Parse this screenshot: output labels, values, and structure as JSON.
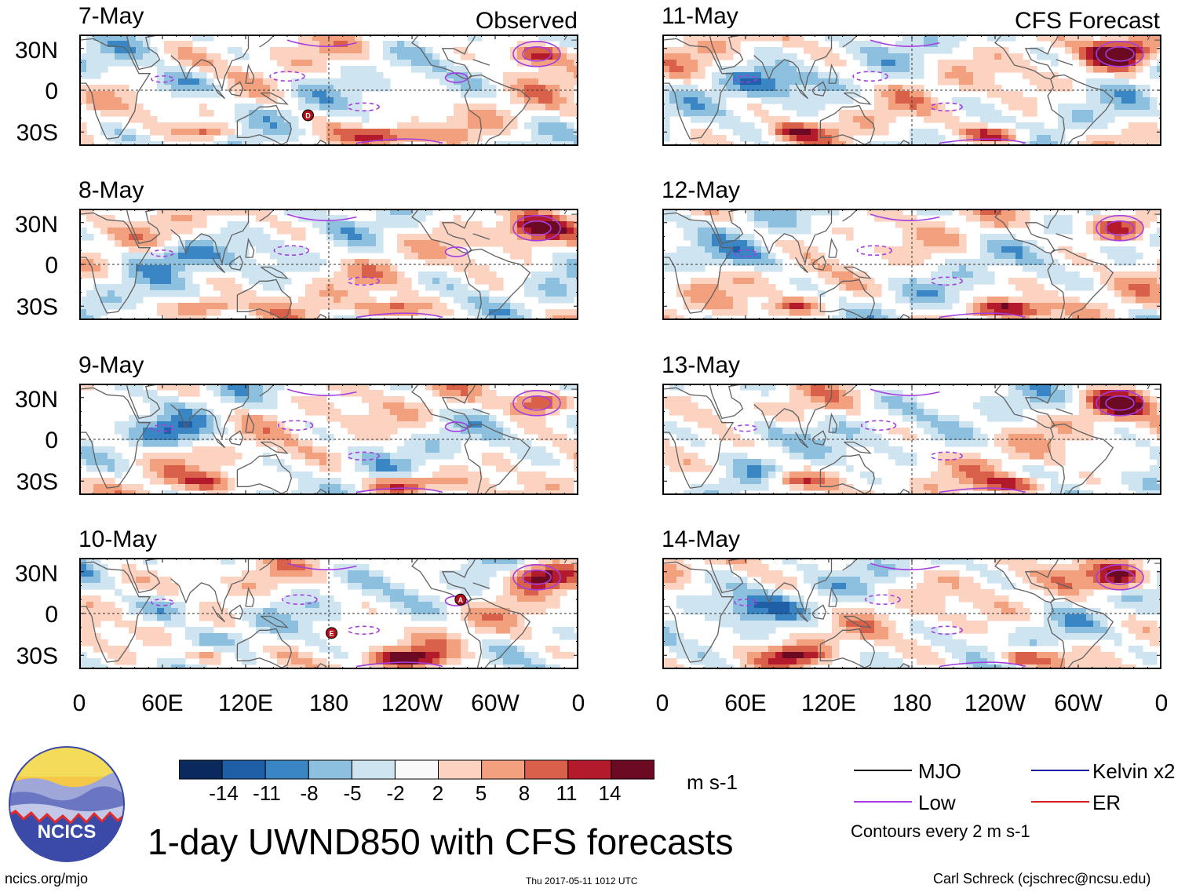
{
  "panels": {
    "observed_title": "Observed",
    "forecast_title": "CFS Forecast",
    "left": [
      {
        "date": "7-May",
        "markers": [
          {
            "letter": "D",
            "lon": 165,
            "lat": -18
          }
        ]
      },
      {
        "date": "8-May",
        "markers": []
      },
      {
        "date": "9-May",
        "markers": []
      },
      {
        "date": "10-May",
        "markers": [
          {
            "letter": "A",
            "lon": 275,
            "lat": 10
          },
          {
            "letter": "E",
            "lon": 182,
            "lat": -14
          }
        ]
      }
    ],
    "right": [
      {
        "date": "11-May",
        "markers": []
      },
      {
        "date": "12-May",
        "markers": []
      },
      {
        "date": "13-May",
        "markers": []
      },
      {
        "date": "14-May",
        "markers": []
      }
    ]
  },
  "axes": {
    "lat_labels": [
      "30N",
      "0",
      "30S"
    ],
    "lon_labels": [
      "0",
      "60E",
      "120E",
      "180",
      "120W",
      "60W",
      "0"
    ]
  },
  "colorbar": {
    "ticks": [
      "-14",
      "-11",
      "-8",
      "-5",
      "-2",
      "2",
      "5",
      "8",
      "11",
      "14"
    ],
    "colors": [
      "#0a2a5e",
      "#1e5fa8",
      "#3a86c4",
      "#8cc0de",
      "#cfe4f1",
      "#f9f9f9",
      "#fbd3c0",
      "#f2a07e",
      "#d9614a",
      "#b31b2c",
      "#6b0a22"
    ],
    "units": "m s-1"
  },
  "legend": {
    "items": [
      {
        "label": "MJO",
        "color": "#000000"
      },
      {
        "label": "Kelvin x2",
        "color": "#1c1ca8"
      },
      {
        "label": "Low",
        "color": "#a43ee0"
      },
      {
        "label": "ER",
        "color": "#d42020"
      }
    ],
    "note": "Contours every 2 m s-1"
  },
  "logo": {
    "text": "NCICS"
  },
  "title": "1-day UWND850 with CFS forecasts",
  "footer": {
    "left": "ncics.org/mjo",
    "middle": "Thu 2017-05-11 1012 UTC",
    "right": "Carl Schreck (cjschrec@ncsu.edu)"
  }
}
